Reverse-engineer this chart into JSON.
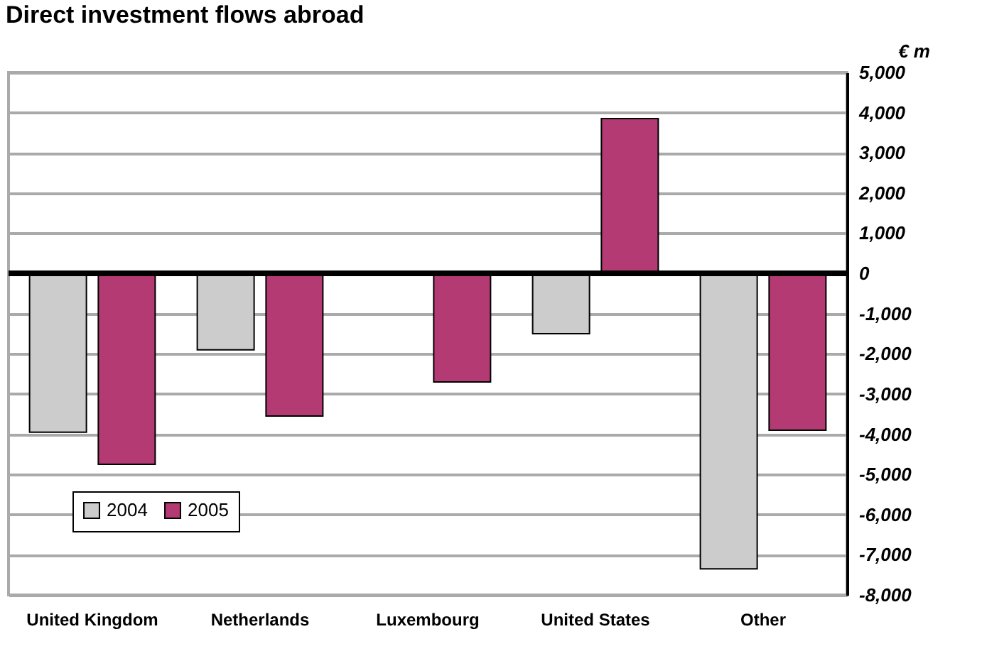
{
  "chart_data": {
    "type": "bar",
    "title": "Direct investment flows abroad",
    "ylabel": "€ m",
    "categories": [
      "United Kingdom",
      "Netherlands",
      "Luxembourg",
      "United States",
      "Other"
    ],
    "series": [
      {
        "name": "2004",
        "color": "#cccccc",
        "values": [
          -3950,
          -1900,
          null,
          -1500,
          -7350
        ]
      },
      {
        "name": "2005",
        "color": "#b33a73",
        "values": [
          -4750,
          -3550,
          -2700,
          3850,
          -3900
        ]
      }
    ],
    "ylim": [
      -8000,
      5000
    ],
    "yticks": [
      {
        "value": -8000,
        "label": "-8,000"
      },
      {
        "value": -7000,
        "label": "-7,000"
      },
      {
        "value": -6000,
        "label": "-6,000"
      },
      {
        "value": -5000,
        "label": "-5,000"
      },
      {
        "value": -4000,
        "label": "-4,000"
      },
      {
        "value": -3000,
        "label": "-3,000"
      },
      {
        "value": -2000,
        "label": "-2,000"
      },
      {
        "value": -1000,
        "label": "-1,000"
      },
      0,
      {
        "value": 1000,
        "label": "1,000"
      },
      {
        "value": 2000,
        "label": "2,000"
      },
      {
        "value": 3000,
        "label": "3,000"
      },
      {
        "value": 4000,
        "label": "4,000"
      },
      {
        "value": 5000,
        "label": "5,000"
      }
    ],
    "ref_lines": [
      {
        "axis": "y",
        "value": 0,
        "color": "#000000"
      }
    ],
    "grid": "y",
    "legend": "bottom left"
  }
}
